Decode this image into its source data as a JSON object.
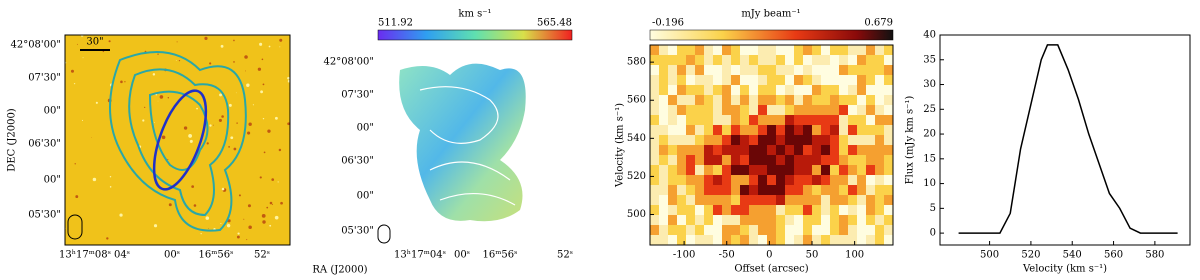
{
  "images": [
    {
      "scale_bar": "30\"",
      "ylabel": "DEC (J2000)",
      "yticks": [
        "42°08'00\"",
        "07'30\"",
        "00\"",
        "06'30\"",
        "00\"",
        "05'30\""
      ],
      "xticks": [
        "13ʰ17ᵐ08ˢ",
        "04ˢ",
        "00ˢ",
        "16ᵐ56ˢ",
        "52ˢ"
      ]
    },
    {
      "colorbar_label": "km s⁻¹",
      "colorbar_min": "511.92",
      "colorbar_max": "565.48",
      "yticks": [
        "42°08'00\"",
        "07'30\"",
        "00\"",
        "06'30\"",
        "00\"",
        "05'30\""
      ],
      "xticks": [
        "13ʰ17ᵐ04ˢ",
        "00ˢ",
        "16ᵐ56ˢ",
        "52ˢ"
      ]
    }
  ],
  "shared_xlabel": "RA (J2000)",
  "chart_data": [
    {
      "type": "heatmap",
      "colorbar_label": "mJy beam⁻¹",
      "colorbar_min": "-0.196",
      "colorbar_max": "0.679",
      "xlabel": "Offset (arcsec)",
      "ylabel": "Velocity (km s⁻¹)",
      "xlim": [
        -140,
        145
      ],
      "ylim": [
        484,
        589
      ],
      "xticks": [
        -100,
        -50,
        0,
        50,
        100
      ],
      "yticks": [
        500,
        520,
        540,
        560,
        580
      ]
    },
    {
      "type": "line",
      "xlabel": "Velocity (km s⁻¹)",
      "ylabel": "Flux (mJy km s⁻¹)",
      "color": "#000000",
      "x": [
        485,
        490,
        495,
        500,
        505,
        510,
        515,
        520,
        525,
        528,
        533,
        538,
        543,
        548,
        553,
        558,
        563,
        568,
        573,
        578,
        583,
        591
      ],
      "values": [
        0,
        0,
        0,
        0,
        0,
        4,
        17,
        26,
        35,
        38,
        38,
        33,
        27,
        20,
        14,
        8,
        5,
        1,
        0,
        0,
        0,
        0
      ],
      "xlim": [
        476,
        597
      ],
      "ylim": [
        -2.4,
        40
      ],
      "xticks": [
        500,
        520,
        540,
        560,
        580
      ],
      "yticks": [
        0,
        5,
        10,
        15,
        20,
        25,
        30,
        35,
        40
      ]
    }
  ]
}
